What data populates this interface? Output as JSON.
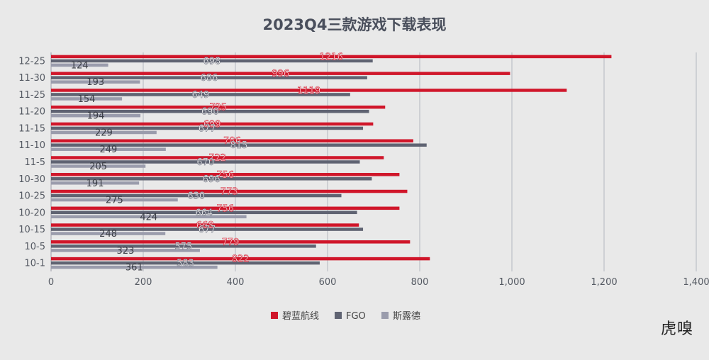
{
  "chart_data": {
    "type": "bar",
    "orientation": "horizontal",
    "title": "2023Q4三款游戏下载表现",
    "categories": [
      "12-25",
      "11-30",
      "11-25",
      "11-20",
      "11-15",
      "11-10",
      "11-5",
      "10-30",
      "10-25",
      "10-20",
      "10-15",
      "10-5",
      "10-1"
    ],
    "series": [
      {
        "name": "碧蓝航线",
        "color": "#d0162a",
        "values": [
          1216,
          996,
          1119,
          725,
          699,
          786,
          722,
          756,
          773,
          756,
          668,
          779,
          822
        ]
      },
      {
        "name": "FGO",
        "color": "#5f6372",
        "values": [
          698,
          686,
          649,
          690,
          677,
          815,
          670,
          696,
          630,
          664,
          677,
          575,
          583
        ]
      },
      {
        "name": "斯露德",
        "color": "#9a9cac",
        "values": [
          124,
          193,
          154,
          194,
          229,
          249,
          205,
          191,
          275,
          424,
          248,
          323,
          361
        ]
      }
    ],
    "xlim": [
      0,
      1400
    ],
    "xticks": [
      "0",
      "200",
      "400",
      "600",
      "800",
      "1,000",
      "1,200",
      "1,400"
    ],
    "grid": true,
    "legend_position": "bottom"
  },
  "watermark": "虎嗅"
}
